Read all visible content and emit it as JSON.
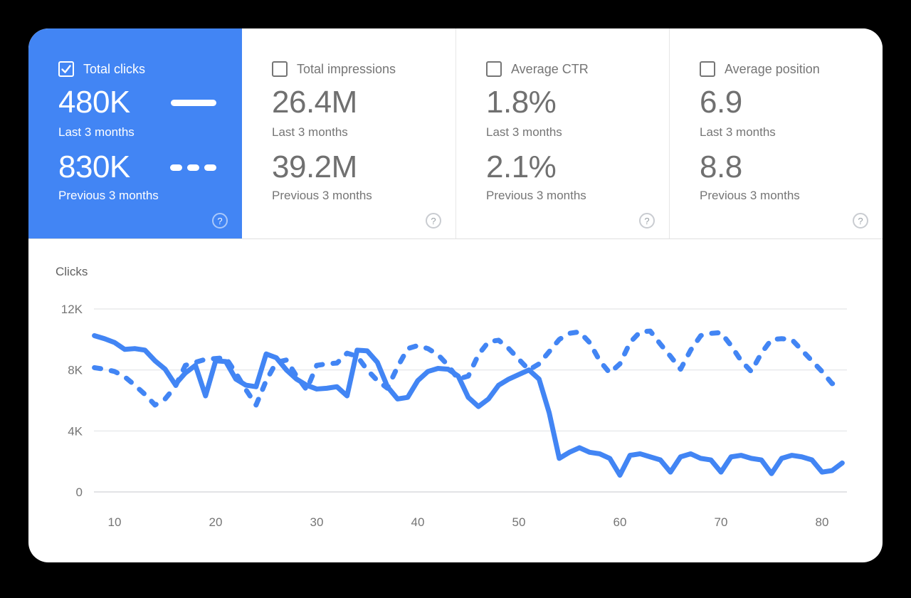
{
  "colors": {
    "accent_blue": "#4285F4",
    "label_gray": "#757575",
    "value_gray": "#707070",
    "grid_line": "#E9EAEC",
    "grid_zero_line": "#D8DADE",
    "divider": "#E0E0E0",
    "chart_title_gray": "#616161"
  },
  "metric_cards": [
    {
      "id": "total-clicks",
      "label": "Total clicks",
      "checked": true,
      "selected": true,
      "primary_value": "480K",
      "primary_caption": "Last 3 months",
      "secondary_value": "830K",
      "secondary_caption": "Previous 3 months",
      "help_glyph": "?"
    },
    {
      "id": "total-impressions",
      "label": "Total impressions",
      "checked": false,
      "selected": false,
      "primary_value": "26.4M",
      "primary_caption": "Last 3 months",
      "secondary_value": "39.2M",
      "secondary_caption": "Previous 3 months",
      "help_glyph": "?"
    },
    {
      "id": "average-ctr",
      "label": "Average CTR",
      "checked": false,
      "selected": false,
      "primary_value": "1.8%",
      "primary_caption": "Last 3 months",
      "secondary_value": "2.1%",
      "secondary_caption": "Previous 3 months",
      "help_glyph": "?"
    },
    {
      "id": "average-position",
      "label": "Average position",
      "checked": false,
      "selected": false,
      "primary_value": "6.9",
      "primary_caption": "Last 3 months",
      "secondary_value": "8.8",
      "secondary_caption": "Previous 3 months",
      "help_glyph": "?"
    }
  ],
  "chart_data": {
    "type": "line",
    "title": "Clicks",
    "unit": "thousands of clicks per day",
    "line_color": "#4285F4",
    "grid": true,
    "legend_position": "in-card",
    "xlim": [
      8,
      82.5
    ],
    "ylim": [
      0,
      12.9
    ],
    "x_ticks": [
      10,
      20,
      30,
      40,
      50,
      60,
      70,
      80
    ],
    "y_ticks": [
      {
        "value": 0,
        "label": "0"
      },
      {
        "value": 4,
        "label": "4K"
      },
      {
        "value": 8,
        "label": "8K"
      },
      {
        "value": 12,
        "label": "12K"
      }
    ],
    "x": [
      8,
      9,
      10,
      11,
      12,
      13,
      14,
      15,
      16,
      17,
      18,
      19,
      20,
      21,
      22,
      23,
      24,
      25,
      26,
      27,
      28,
      29,
      30,
      31,
      32,
      33,
      34,
      35,
      36,
      37,
      38,
      39,
      40,
      41,
      42,
      43,
      44,
      45,
      46,
      47,
      48,
      49,
      50,
      51,
      52,
      53,
      54,
      55,
      56,
      57,
      58,
      59,
      60,
      61,
      62,
      63,
      64,
      65,
      66,
      67,
      68,
      69,
      70,
      71,
      72,
      73,
      74,
      75,
      76,
      77,
      78,
      79,
      80,
      81,
      82
    ],
    "series": [
      {
        "name": "Last 3 months",
        "style": "solid",
        "values": [
          10.25,
          10.05,
          9.8,
          9.35,
          9.4,
          9.3,
          8.6,
          8.05,
          7.05,
          7.8,
          8.3,
          6.3,
          8.6,
          8.55,
          7.4,
          7.0,
          6.9,
          9.05,
          8.8,
          8.0,
          7.4,
          7.0,
          6.75,
          6.8,
          6.9,
          6.3,
          9.3,
          9.25,
          8.5,
          6.9,
          6.1,
          6.2,
          7.3,
          7.9,
          8.1,
          8.05,
          7.6,
          6.2,
          5.6,
          6.1,
          7.0,
          7.4,
          7.7,
          8.0,
          7.4,
          5.2,
          2.2,
          2.6,
          2.9,
          2.6,
          2.5,
          2.2,
          1.1,
          2.4,
          2.5,
          2.3,
          2.1,
          1.3,
          2.3,
          2.5,
          2.2,
          2.1,
          1.3,
          2.3,
          2.4,
          2.2,
          2.1,
          1.2,
          2.2,
          2.4,
          2.3,
          2.1,
          1.3,
          1.4,
          1.9
        ]
      },
      {
        "name": "Previous 3 months",
        "style": "dashed",
        "values": [
          8.15,
          8.05,
          7.9,
          7.55,
          7.0,
          6.4,
          5.7,
          6.1,
          6.9,
          8.3,
          8.5,
          8.7,
          8.75,
          8.8,
          7.8,
          6.7,
          5.7,
          7.3,
          8.5,
          8.65,
          7.6,
          6.7,
          8.3,
          8.4,
          8.45,
          9.1,
          8.9,
          8.0,
          7.3,
          6.8,
          8.2,
          9.4,
          9.6,
          9.4,
          9.0,
          8.3,
          7.4,
          7.6,
          9.0,
          9.85,
          9.95,
          9.4,
          8.7,
          8.0,
          8.4,
          9.2,
          10.0,
          10.4,
          10.5,
          9.8,
          8.6,
          7.8,
          8.4,
          9.8,
          10.5,
          10.55,
          9.7,
          8.9,
          8.05,
          9.3,
          10.25,
          10.4,
          10.45,
          9.6,
          8.6,
          7.9,
          9.1,
          10.0,
          10.05,
          10.0,
          9.3,
          8.6,
          7.9,
          7.1,
          7.3
        ]
      }
    ]
  }
}
